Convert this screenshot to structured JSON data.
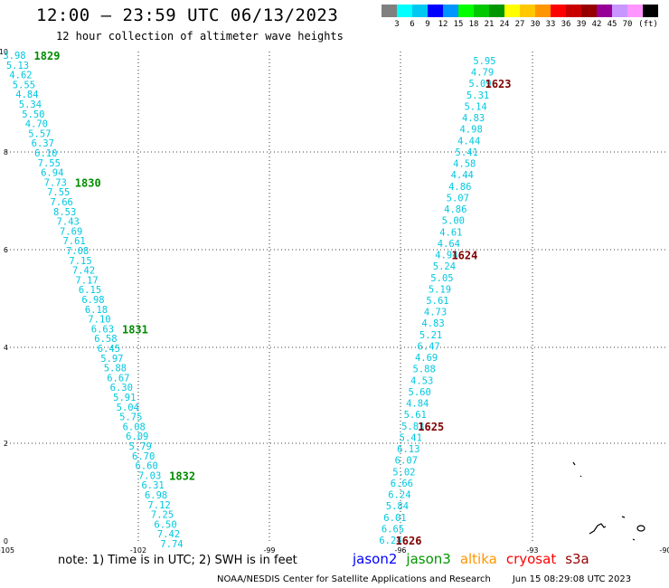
{
  "title": "12:00 – 23:59 UTC 06/13/2023",
  "subtitle": "12 hour collection of altimeter wave heights",
  "legend": {
    "colors": [
      "#808080",
      "#00ffff",
      "#00c8f0",
      "#0000ff",
      "#0096ff",
      "#00ff00",
      "#00c800",
      "#009600",
      "#ffff00",
      "#ffc800",
      "#ff9600",
      "#ff0000",
      "#c80000",
      "#960000",
      "#960096",
      "#c896ff",
      "#ff96ff",
      "#000000"
    ],
    "labels": [
      "3",
      "6",
      "9",
      "12",
      "15",
      "18",
      "21",
      "24",
      "27",
      "30",
      "33",
      "36",
      "39",
      "42",
      "45",
      "70",
      "(ft)"
    ]
  },
  "map_data": {
    "lon_range": [
      -105,
      -90
    ],
    "lat_range": [
      0,
      10
    ],
    "x_ticks": [
      "-105",
      "-102",
      "-99",
      "-96",
      "-93",
      "-90"
    ],
    "y_ticks": [
      "0",
      "2",
      "4",
      "6",
      "8",
      "10"
    ],
    "passes": [
      {
        "satellite": "jason3",
        "color": "#008c00",
        "values": [
          "3.98",
          "5.13",
          "4.62",
          "5.55",
          "4.84",
          "5.34",
          "5.50",
          "4.70",
          "5.57",
          "6.37",
          "6.10",
          "7.55",
          "6.94",
          "7.73",
          "7.55",
          "7.66",
          "8.53",
          "7.43",
          "7.69",
          "7.61",
          "7.08",
          "7.15",
          "7.42",
          "7.17",
          "6.15",
          "6.98",
          "6.18",
          "7.10",
          "6.63",
          "6.58",
          "6.45",
          "5.97",
          "5.88",
          "6.67",
          "6.30",
          "5.91",
          "5.04",
          "5.75",
          "6.08",
          "6.09",
          "5.79",
          "6.70",
          "6.60",
          "7.03",
          "6.31",
          "6.98",
          "7.12",
          "7.25",
          "6.50",
          "7.42",
          "7.74"
        ],
        "times": [
          {
            "label": "1829",
            "idx": 0
          },
          {
            "label": "1830",
            "idx": 13
          },
          {
            "label": "1831",
            "idx": 28
          },
          {
            "label": "1832",
            "idx": 43
          }
        ]
      },
      {
        "satellite": "cryosat",
        "color": "#800000",
        "values": [
          "5.95",
          "4.79",
          "5.09",
          "5.31",
          "5.14",
          "4.83",
          "4.98",
          "4.44",
          "5.41",
          "4.58",
          "4.44",
          "4.86",
          "5.07",
          "4.86",
          "5.00",
          "4.61",
          "4.64",
          "4.94",
          "5.24",
          "5.05",
          "5.19",
          "5.61",
          "4.73",
          "4.83",
          "5.21",
          "6.47",
          "4.69",
          "5.88",
          "4.53",
          "5.60",
          "4.84",
          "5.61",
          "5.83",
          "5.41",
          "6.13",
          "6.07",
          "5.02",
          "6.66",
          "6.24",
          "5.84",
          "6.01",
          "6.65",
          "6.24"
        ],
        "times": [
          {
            "label": "1623",
            "idx": 2
          },
          {
            "label": "1624",
            "idx": 17
          },
          {
            "label": "1625",
            "idx": 32
          },
          {
            "label": "1626",
            "idx": 42
          }
        ]
      }
    ]
  },
  "note": "note: 1) Time is in UTC; 2) SWH is in feet",
  "satellites": [
    {
      "name": "jason2",
      "color": "#0000ff"
    },
    {
      "name": "jason3",
      "color": "#009600"
    },
    {
      "name": "altika",
      "color": "#ff9600"
    },
    {
      "name": "cryosat",
      "color": "#ff0000"
    },
    {
      "name": "s3a",
      "color": "#960000"
    }
  ],
  "credit": "NOAA/NESDIS Center for Satellite Applications and Research",
  "timestamp": "Jun 15 08:29:08 UTC 2023"
}
